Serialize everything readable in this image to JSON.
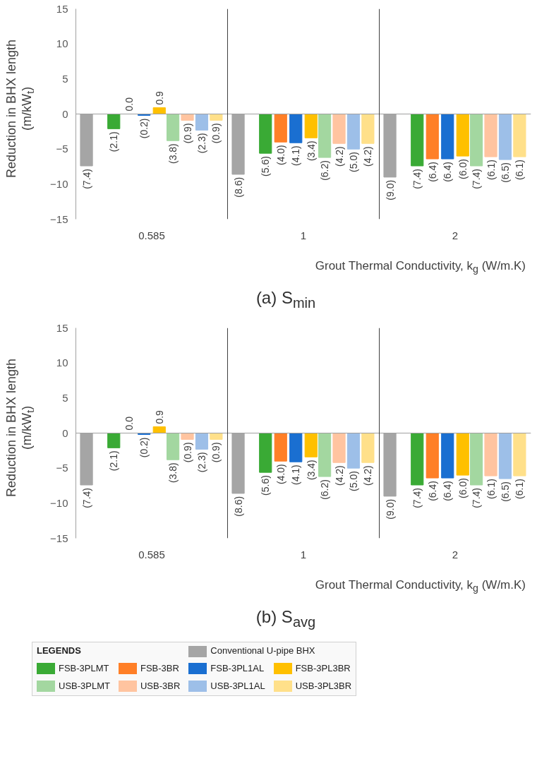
{
  "chart_data": [
    {
      "type": "bar",
      "title": "(a) S$_{min}$",
      "xlabel": "Grout Thermal Conductivity,  k$_{g}$ (W/m.K)",
      "ylabel": "Reduction in BHX length\n(m/kW$_{t}$)",
      "categories": [
        "0.585",
        "1",
        "2"
      ],
      "ylim": [
        -15,
        15
      ],
      "yticks": [
        -15,
        -10,
        -5,
        0,
        5,
        10,
        15
      ],
      "grid": false,
      "legend": "bottom",
      "legend_title": "LEGENDS",
      "series": [
        {
          "name": "Conventional U-pipe BHX",
          "color": "#a5a5a5",
          "values": [
            -7.4,
            -8.6,
            -9.0
          ],
          "value_labels": [
            "(7.4)",
            "(8.6)",
            "(9.0)"
          ]
        },
        {
          "name": "FSB-3PLMT",
          "color": "#3aaa35",
          "values": [
            -2.1,
            -5.6,
            -7.4
          ],
          "value_labels": [
            "(2.1)",
            "(5.6)",
            "(7.4)"
          ]
        },
        {
          "name": "FSB-3BR",
          "color": "#ff7f27",
          "values": [
            0.0,
            -4.0,
            -6.4
          ],
          "value_labels": [
            "0.0",
            "(4.0)",
            "(6.4)"
          ]
        },
        {
          "name": "FSB-3PL1AL",
          "color": "#1a6fd1",
          "values": [
            -0.2,
            -4.1,
            -6.4
          ],
          "value_labels": [
            "(0.2)",
            "(4.1)",
            "(6.4)"
          ]
        },
        {
          "name": "FSB-3PL3BR",
          "color": "#ffc000",
          "values": [
            0.9,
            -3.4,
            -6.0
          ],
          "value_labels": [
            "0.9",
            "(3.4)",
            "(6.0)"
          ]
        },
        {
          "name": "USB-3PLMT",
          "color": "#a3d7a0",
          "values": [
            -3.8,
            -6.2,
            -7.4
          ],
          "value_labels": [
            "(3.8)",
            "(6.2)",
            "(7.4)"
          ]
        },
        {
          "name": "USB-3BR",
          "color": "#ffc4a0",
          "values": [
            -0.9,
            -4.2,
            -6.1
          ],
          "value_labels": [
            "(0.9)",
            "(4.2)",
            "(6.1)"
          ]
        },
        {
          "name": "USB-3PL1AL",
          "color": "#9dbfe8",
          "values": [
            -2.3,
            -5.0,
            -6.5
          ],
          "value_labels": [
            "(2.3)",
            "(5.0)",
            "(6.5)"
          ]
        },
        {
          "name": "USB-3PL3BR",
          "color": "#ffe08a",
          "values": [
            -0.9,
            -4.2,
            -6.1
          ],
          "value_labels": [
            "(0.9)",
            "(4.2)",
            "(6.1)"
          ]
        }
      ]
    },
    {
      "type": "bar",
      "title": "(b) S$_{avg}$",
      "xlabel": "Grout Thermal Conductivity,  k$_{g}$ (W/m.K)",
      "ylabel": "Reduction in BHX length\n(m/kW$_{t}$)",
      "categories": [
        "0.585",
        "1",
        "2"
      ],
      "ylim": [
        -15,
        15
      ],
      "yticks": [
        -15,
        -10,
        -5,
        0,
        5,
        10,
        15
      ],
      "grid": false,
      "series": [
        {
          "color": "#a5a5a5",
          "values": [
            -7.4,
            -8.6,
            -9.0
          ],
          "value_labels": [
            "(7.4)",
            "(8.6)",
            "(9.0)"
          ]
        },
        {
          "color": "#3aaa35",
          "values": [
            -2.1,
            -5.6,
            -7.4
          ],
          "value_labels": [
            "(2.1)",
            "(5.6)",
            "(7.4)"
          ]
        },
        {
          "color": "#ff7f27",
          "values": [
            0.0,
            -4.0,
            -6.4
          ],
          "value_labels": [
            "0.0",
            "(4.0)",
            "(6.4)"
          ]
        },
        {
          "color": "#1a6fd1",
          "values": [
            -0.2,
            -4.1,
            -6.4
          ],
          "value_labels": [
            "(0.2)",
            "(4.1)",
            "(6.4)"
          ]
        },
        {
          "color": "#ffc000",
          "values": [
            0.9,
            -3.4,
            -6.0
          ],
          "value_labels": [
            "0.9",
            "(3.4)",
            "(6.0)"
          ]
        },
        {
          "color": "#a3d7a0",
          "values": [
            -3.8,
            -6.2,
            -7.4
          ],
          "value_labels": [
            "(3.8)",
            "(6.2)",
            "(7.4)"
          ]
        },
        {
          "color": "#ffc4a0",
          "values": [
            -0.9,
            -4.2,
            -6.1
          ],
          "value_labels": [
            "(0.9)",
            "(4.2)",
            "(6.1)"
          ]
        },
        {
          "color": "#9dbfe8",
          "values": [
            -2.3,
            -5.0,
            -6.5
          ],
          "value_labels": [
            "(2.3)",
            "(5.0)",
            "(6.5)"
          ]
        },
        {
          "color": "#ffe08a",
          "values": [
            -0.9,
            -4.2,
            -6.1
          ],
          "value_labels": [
            "(0.9)",
            "(4.2)",
            "(6.1)"
          ]
        }
      ]
    }
  ]
}
